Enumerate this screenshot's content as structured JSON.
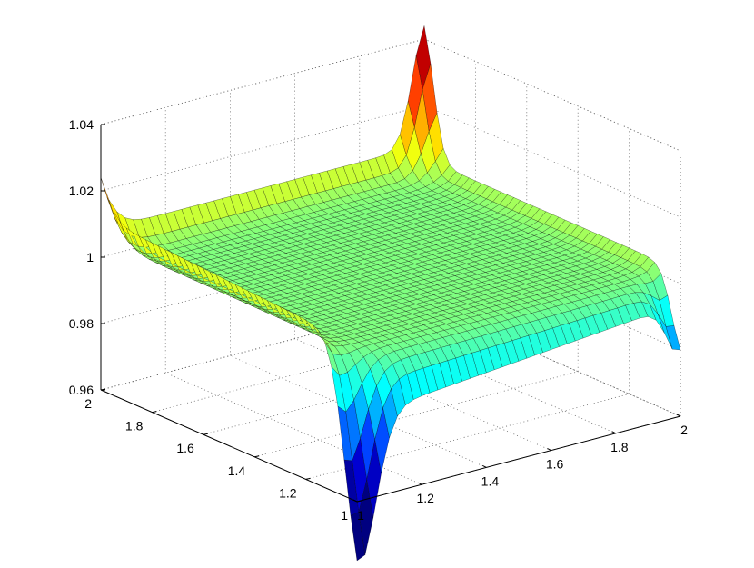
{
  "chart_data": {
    "type": "surface",
    "title": "",
    "xlabel": "",
    "ylabel": "",
    "zlabel": "",
    "x_range": [
      1,
      2
    ],
    "y_range": [
      1,
      2
    ],
    "z_range": [
      0.96,
      1.04
    ],
    "grid": true,
    "colormap": "jet",
    "x_ticks": [
      "1",
      "1.2",
      "1.4",
      "1.6",
      "1.8",
      "2"
    ],
    "y_ticks": [
      "1",
      "1.2",
      "1.4",
      "1.6",
      "1.8",
      "2"
    ],
    "z_ticks": [
      "0.96",
      "0.98",
      "1",
      "1.02",
      "1.04"
    ],
    "x_tick_values": [
      1,
      1.2,
      1.4,
      1.6,
      1.8,
      2
    ],
    "y_tick_values": [
      1,
      1.2,
      1.4,
      1.6,
      1.8,
      2
    ],
    "z_tick_values": [
      0.96,
      0.98,
      1,
      1.02,
      1.04
    ],
    "surface": {
      "grid_points": 41,
      "interior_level": 1.0,
      "features": [
        {
          "location": "x=1, y=1",
          "value": 0.934
        },
        {
          "location": "x=1, y=2",
          "value": 1.012
        },
        {
          "location": "x=2, y=1",
          "value": 0.978
        },
        {
          "location": "x=2, y=2",
          "value": 1.04
        },
        {
          "location": "edge x=1",
          "value": 1.012
        },
        {
          "location": "edge y=2",
          "value": 1.008
        },
        {
          "location": "edge y=1",
          "value": 0.985
        }
      ]
    }
  }
}
